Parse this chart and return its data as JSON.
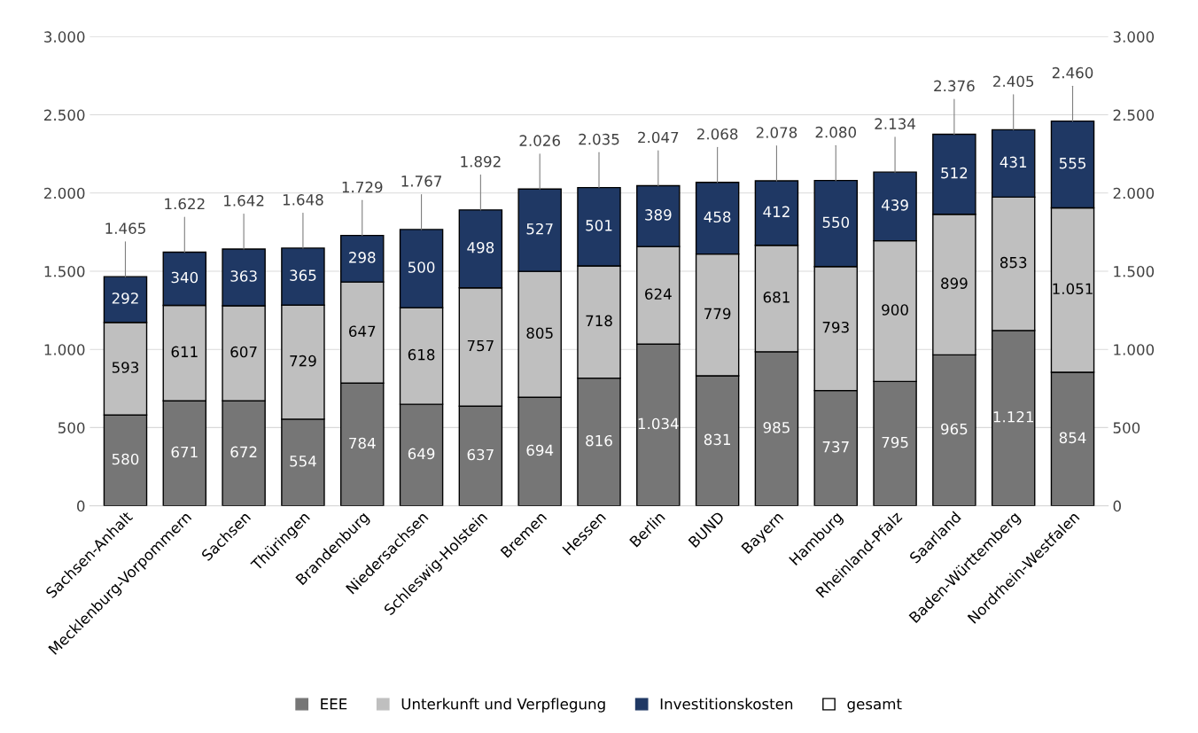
{
  "chart_data": {
    "type": "bar",
    "stacked": true,
    "categories": [
      "Sachsen-Anhalt",
      "Mecklenburg-Vorpommern",
      "Sachsen",
      "Thüringen",
      "Brandenburg",
      "Niedersachsen",
      "Schleswig-Holstein",
      "Bremen",
      "Hessen",
      "Berlin",
      "BUND",
      "Bayern",
      "Hamburg",
      "Rheinland-Pfalz",
      "Saarland",
      "Baden-Württemberg",
      "Nordrhein-Westfalen"
    ],
    "series": [
      {
        "name": "EEE",
        "color": "#767676",
        "values": [
          580,
          671,
          672,
          554,
          784,
          649,
          637,
          694,
          816,
          1034,
          831,
          985,
          737,
          795,
          965,
          1121,
          854
        ],
        "value_labels": [
          "580",
          "671",
          "672",
          "554",
          "784",
          "649",
          "637",
          "694",
          "816",
          "1.034",
          "831",
          "985",
          "737",
          "795",
          "965",
          "1.121",
          "854"
        ]
      },
      {
        "name": "Unterkunft und Verpflegung",
        "color": "#bfbfbf",
        "values": [
          593,
          611,
          607,
          729,
          647,
          618,
          757,
          805,
          718,
          624,
          779,
          681,
          793,
          900,
          899,
          853,
          1051
        ],
        "value_labels": [
          "593",
          "611",
          "607",
          "729",
          "647",
          "618",
          "757",
          "805",
          "718",
          "624",
          "779",
          "681",
          "793",
          "900",
          "899",
          "853",
          "1.051"
        ]
      },
      {
        "name": "Investitionskosten",
        "color": "#1f3864",
        "values": [
          292,
          340,
          363,
          365,
          298,
          500,
          498,
          527,
          501,
          389,
          458,
          412,
          550,
          439,
          512,
          431,
          555
        ],
        "value_labels": [
          "292",
          "340",
          "363",
          "365",
          "298",
          "500",
          "498",
          "527",
          "501",
          "389",
          "458",
          "412",
          "550",
          "439",
          "512",
          "431",
          "555"
        ]
      },
      {
        "name": "gesamt",
        "color": "#ffffff",
        "values": [
          null,
          null,
          null,
          null,
          null,
          null,
          null,
          null,
          null,
          null,
          null,
          null,
          null,
          null,
          null,
          null,
          null
        ]
      }
    ],
    "totals": [
      "1.465",
      "1.622",
      "1.642",
      "1.648",
      "1.729",
      "1.767",
      "1.892",
      "2.026",
      "2.035",
      "2.047",
      "2.068",
      "2.078",
      "2.080",
      "2.134",
      "2.376",
      "2.405",
      "2.460"
    ],
    "ylim": [
      0,
      3000
    ],
    "yticks": [
      {
        "value": 0,
        "label": "0"
      },
      {
        "value": 500,
        "label": "500"
      },
      {
        "value": 1000,
        "label": "1.000"
      },
      {
        "value": 1500,
        "label": "1.500"
      },
      {
        "value": 2000,
        "label": "2.000"
      },
      {
        "value": 2500,
        "label": "2.500"
      },
      {
        "value": 3000,
        "label": "3.000"
      }
    ],
    "y2lim": [
      0,
      3000
    ],
    "y2ticks": [
      {
        "value": 0,
        "label": "0"
      },
      {
        "value": 500,
        "label": "500"
      },
      {
        "value": 1000,
        "label": "1.000"
      },
      {
        "value": 1500,
        "label": "1.500"
      },
      {
        "value": 2000,
        "label": "2.000"
      },
      {
        "value": 2500,
        "label": "2.500"
      },
      {
        "value": 3000,
        "label": "3.000"
      }
    ],
    "grid": "y",
    "legend": "bottom"
  }
}
